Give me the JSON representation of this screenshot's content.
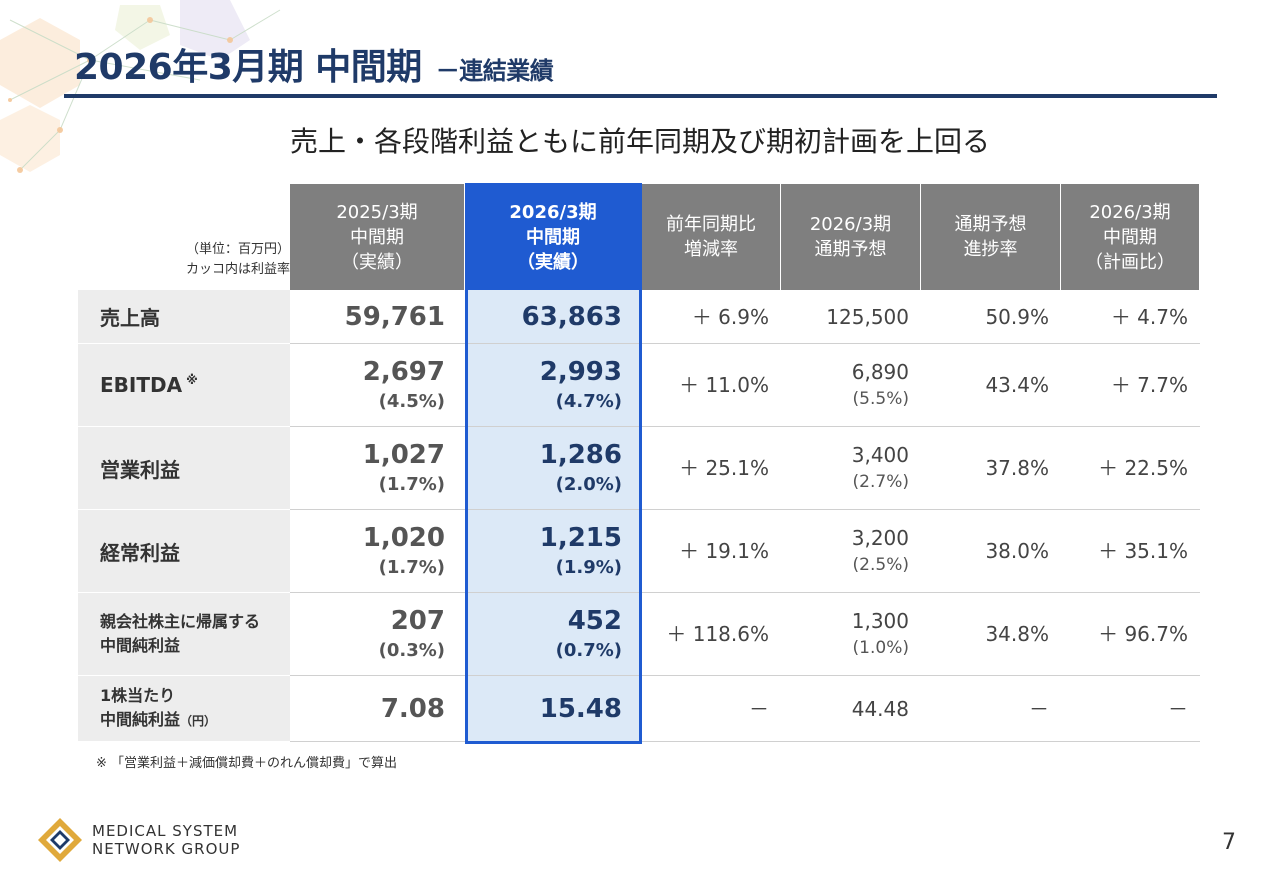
{
  "header": {
    "title": "2026年3月期 中間期",
    "subtitle": "－連結業績"
  },
  "headline": "売上・各段階利益ともに前年同期及び期初計画を上回る",
  "table": {
    "unit_line1": "（単位：百万円）",
    "unit_line2": "カッコ内は利益率",
    "columns": [
      {
        "lines": [
          "2025/3期",
          "中間期",
          "（実績）"
        ]
      },
      {
        "lines": [
          "2026/3期",
          "中間期",
          "（実績）"
        ]
      },
      {
        "lines": [
          "前年同期比",
          "増減率"
        ]
      },
      {
        "lines": [
          "2026/3期",
          "通期予想"
        ]
      },
      {
        "lines": [
          "通期予想",
          "進捗率"
        ]
      },
      {
        "lines": [
          "2026/3期",
          "中間期",
          "（計画比）"
        ]
      }
    ],
    "rows": [
      {
        "label1": "売上高",
        "label2": "",
        "note": "",
        "prev": "59,761",
        "prev_pct": "",
        "cur": "63,863",
        "cur_pct": "",
        "yoy": "＋ 6.9%",
        "fy": "125,500",
        "fy_pct": "",
        "prog": "50.9%",
        "plan": "＋ 4.7%"
      },
      {
        "label1": "EBITDA",
        "label2": "",
        "note": "※",
        "prev": "2,697",
        "prev_pct": "(4.5%)",
        "cur": "2,993",
        "cur_pct": "(4.7%)",
        "yoy": "＋ 11.0%",
        "fy": "6,890",
        "fy_pct": "(5.5%)",
        "prog": "43.4%",
        "plan": "＋ 7.7%"
      },
      {
        "label1": "営業利益",
        "label2": "",
        "note": "",
        "prev": "1,027",
        "prev_pct": "(1.7%)",
        "cur": "1,286",
        "cur_pct": "(2.0%)",
        "yoy": "＋ 25.1%",
        "fy": "3,400",
        "fy_pct": "(2.7%)",
        "prog": "37.8%",
        "plan": "＋ 22.5%"
      },
      {
        "label1": "経常利益",
        "label2": "",
        "note": "",
        "prev": "1,020",
        "prev_pct": "(1.7%)",
        "cur": "1,215",
        "cur_pct": "(1.9%)",
        "yoy": "＋ 19.1%",
        "fy": "3,200",
        "fy_pct": "(2.5%)",
        "prog": "38.0%",
        "plan": "＋ 35.1%"
      },
      {
        "label1": "親会社株主に帰属する",
        "label2": "中間純利益",
        "note": "",
        "prev": "207",
        "prev_pct": "(0.3%)",
        "cur": "452",
        "cur_pct": "(0.7%)",
        "yoy": "＋ 118.6%",
        "fy": "1,300",
        "fy_pct": "(1.0%)",
        "prog": "34.8%",
        "plan": "＋ 96.7%"
      },
      {
        "label1": "1株当たり",
        "label2": "中間純利益",
        "note": "（円）",
        "prev": "7.08",
        "prev_pct": "",
        "cur": "15.48",
        "cur_pct": "",
        "yoy": "－",
        "fy": "44.48",
        "fy_pct": "",
        "prog": "－",
        "plan": "－"
      }
    ]
  },
  "footnote": "※ 「営業利益＋減価償却費＋のれん償却費」で算出",
  "logo": {
    "line1": "MEDICAL SYSTEM",
    "line2": "NETWORK GROUP"
  },
  "page_number": "7",
  "colors": {
    "navy": "#1f3a68",
    "highlight": "#1f5bd1",
    "header_gray": "#7f7f7f",
    "logo_gold": "#e0a93b"
  }
}
